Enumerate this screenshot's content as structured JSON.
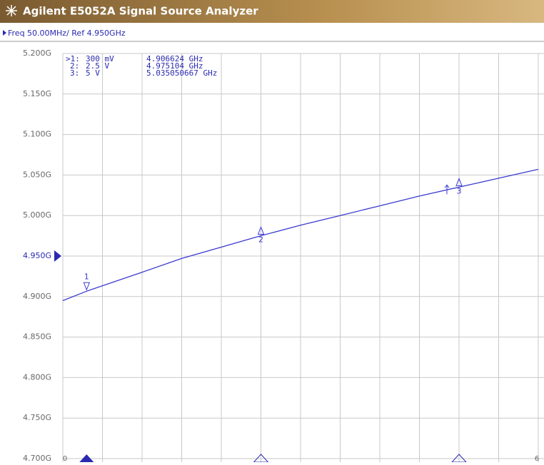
{
  "window": {
    "title": "Agilent E5052A Signal Source Analyzer",
    "header": "Freq 50.00MHz/ Ref 4.950GHz"
  },
  "marker_table": [
    [
      ">1:",
      "300 mV",
      "4.906624 GHz"
    ],
    [
      "2:",
      "2.5 V",
      "4.975104 GHz"
    ],
    [
      "3:",
      "5 V",
      "5.035050667 GHz"
    ]
  ],
  "chart_data": {
    "type": "line",
    "x": [
      0,
      0.3,
      1,
      1.5,
      2,
      2.5,
      3,
      3.5,
      4,
      4.5,
      5,
      5.5,
      6
    ],
    "series": [
      {
        "color": "#3b3bd0",
        "values": [
          4.895,
          4.906624,
          4.93,
          4.947,
          4.961,
          4.975104,
          4.988,
          5.0,
          5.012,
          5.024,
          5.035050667,
          5.046,
          5.057
        ]
      }
    ],
    "xlim": [
      0,
      6
    ],
    "xticks": [
      0,
      6
    ],
    "xgrid": [
      0.5,
      1,
      1.5,
      2,
      2.5,
      3,
      3.5,
      4,
      4.5,
      5,
      5.5
    ],
    "ylim": [
      4.7,
      5.2
    ],
    "yticks": [
      {
        "value": 4.7,
        "label": "4.700G"
      },
      {
        "value": 4.75,
        "label": "4.750G"
      },
      {
        "value": 4.8,
        "label": "4.800G"
      },
      {
        "value": 4.85,
        "label": "4.850G"
      },
      {
        "value": 4.9,
        "label": "4.900G"
      },
      {
        "value": 4.95,
        "label": "4.950G"
      },
      {
        "value": 5.0,
        "label": "5.000G"
      },
      {
        "value": 5.05,
        "label": "5.050G"
      },
      {
        "value": 5.1,
        "label": "5.100G"
      },
      {
        "value": 5.15,
        "label": "5.150G"
      },
      {
        "value": 5.2,
        "label": "5.200G"
      }
    ],
    "reference": 4.95,
    "grid": true,
    "markers": [
      {
        "name": "1",
        "x": 0.3,
        "y": 4.906624,
        "active": true
      },
      {
        "name": "2",
        "x": 2.5,
        "y": 4.975104,
        "active": false
      },
      {
        "name": "3",
        "x": 5,
        "y": 5.035050667,
        "active": false
      }
    ]
  }
}
